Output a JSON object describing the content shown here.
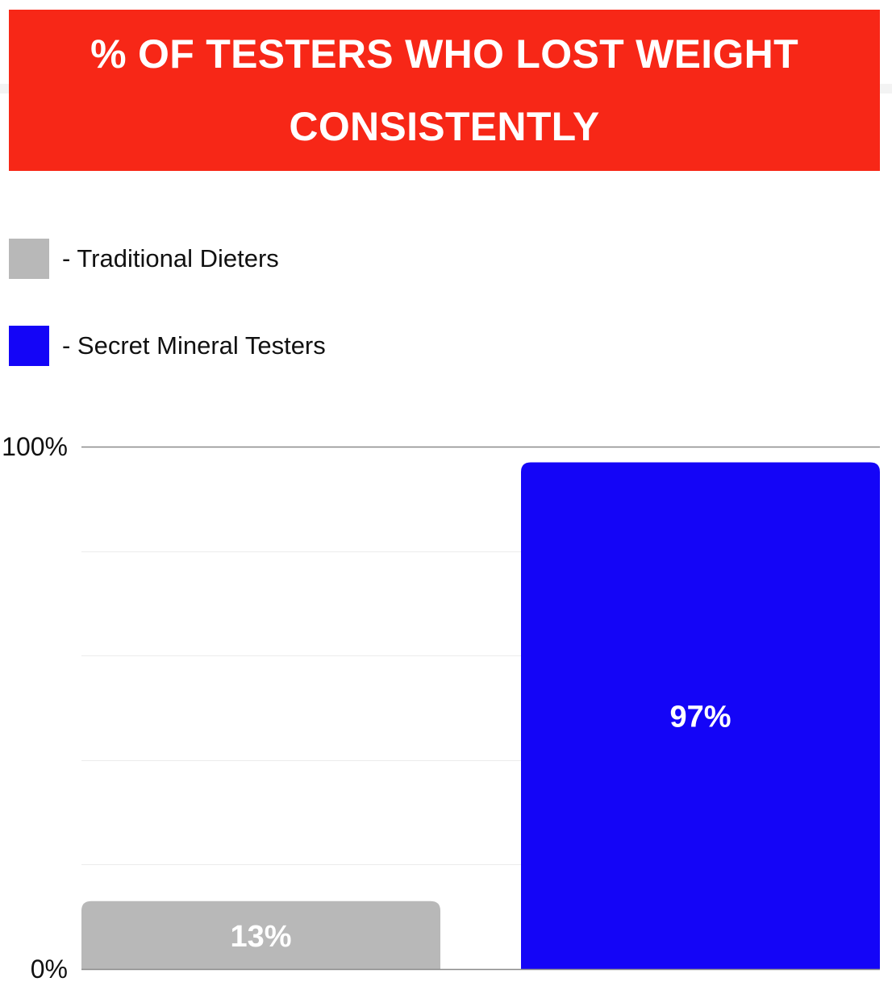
{
  "header": {
    "title_line1": "% OF TESTERS WHO LOST WEIGHT",
    "title_line2": "CONSISTENTLY",
    "background_color": "#f72717"
  },
  "legend": {
    "items": [
      {
        "label": "- Traditional Dieters",
        "color": "#b8b8b8"
      },
      {
        "label": "- Secret Mineral Testers",
        "color": "#1405f7"
      }
    ]
  },
  "chart_data": {
    "type": "bar",
    "categories": [
      "Traditional Dieters",
      "Secret Mineral Testers"
    ],
    "values": [
      13,
      97
    ],
    "value_labels": [
      "13%",
      "97%"
    ],
    "colors": [
      "#b8b8b8",
      "#1405f7"
    ],
    "ylim": [
      0,
      100
    ],
    "yticks": [
      {
        "value": 0,
        "label": "0%"
      },
      {
        "value": 100,
        "label": "100%"
      }
    ],
    "grid": true,
    "gridline_values": [
      20,
      40,
      60,
      80
    ],
    "legend_position": "top-left",
    "title": "% OF TESTERS WHO LOST WEIGHT CONSISTENTLY",
    "xlabel": "",
    "ylabel": ""
  }
}
